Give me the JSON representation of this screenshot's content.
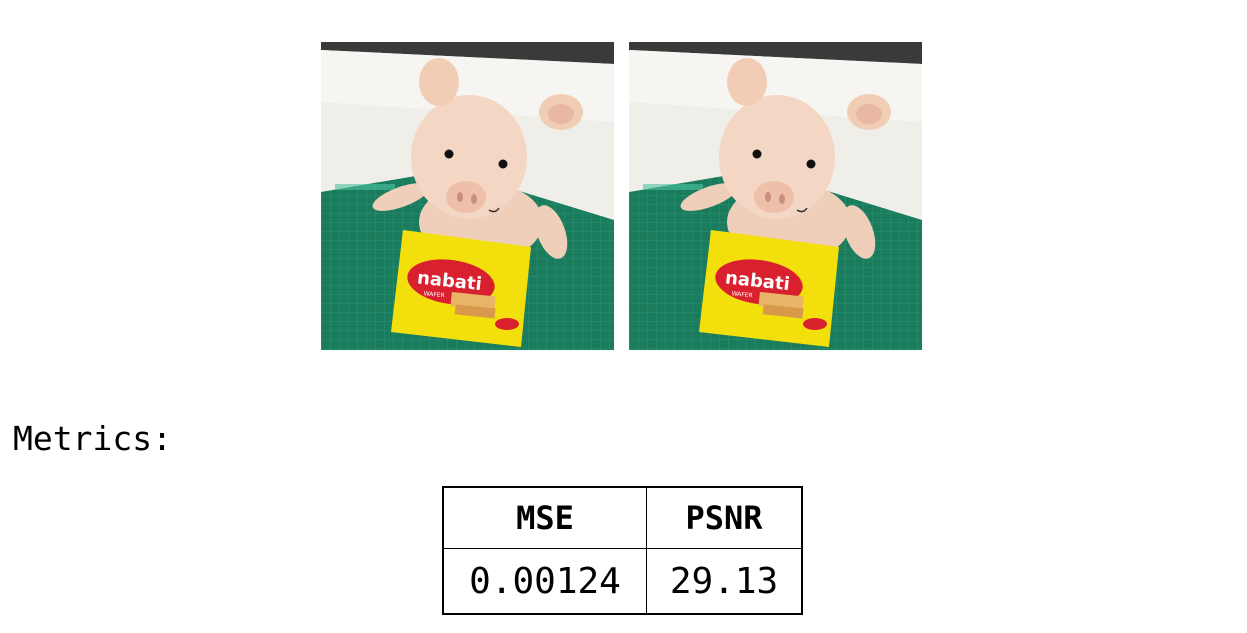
{
  "images": [
    {
      "name": "original-photo"
    },
    {
      "name": "reconstructed-photo"
    }
  ],
  "photo_text": {
    "brand": "nabati",
    "sub": "WAFER",
    "top": "nabati"
  },
  "metrics_label": "Metrics:",
  "table": {
    "headers": [
      "MSE",
      "PSNR"
    ],
    "rows": [
      [
        "0.00124",
        "29.13"
      ]
    ]
  },
  "colors": {
    "mat": "#1a7a5c",
    "wall": "#f2f0ec",
    "pig": "#f2d2bd",
    "package": "#f5e10a",
    "logo_red": "#d8202e"
  }
}
